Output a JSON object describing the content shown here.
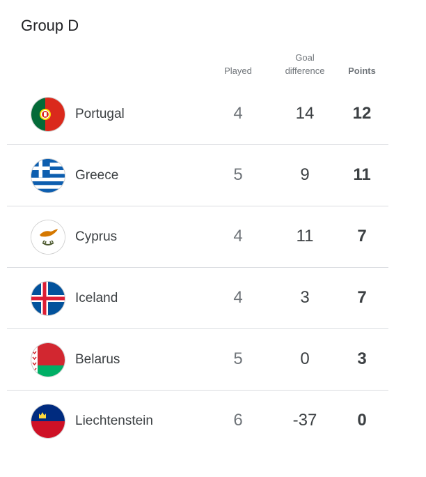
{
  "group": {
    "title": "Group D"
  },
  "columns": {
    "played": "Played",
    "goal_difference_line1": "Goal",
    "goal_difference_line2": "difference",
    "points": "Points"
  },
  "teams": [
    {
      "name": "Portugal",
      "played": "4",
      "goal_difference": "14",
      "points": "12",
      "flag_icon": "portugal-flag-icon"
    },
    {
      "name": "Greece",
      "played": "5",
      "goal_difference": "9",
      "points": "11",
      "flag_icon": "greece-flag-icon"
    },
    {
      "name": "Cyprus",
      "played": "4",
      "goal_difference": "11",
      "points": "7",
      "flag_icon": "cyprus-flag-icon"
    },
    {
      "name": "Iceland",
      "played": "4",
      "goal_difference": "3",
      "points": "7",
      "flag_icon": "iceland-flag-icon"
    },
    {
      "name": "Belarus",
      "played": "5",
      "goal_difference": "0",
      "points": "3",
      "flag_icon": "belarus-flag-icon"
    },
    {
      "name": "Liechtenstein",
      "played": "6",
      "goal_difference": "-37",
      "points": "0",
      "flag_icon": "liechtenstein-flag-icon"
    }
  ],
  "colors": {
    "divider": "#dadce0",
    "muted_text": "#70757a",
    "primary_text": "#3c4043"
  }
}
